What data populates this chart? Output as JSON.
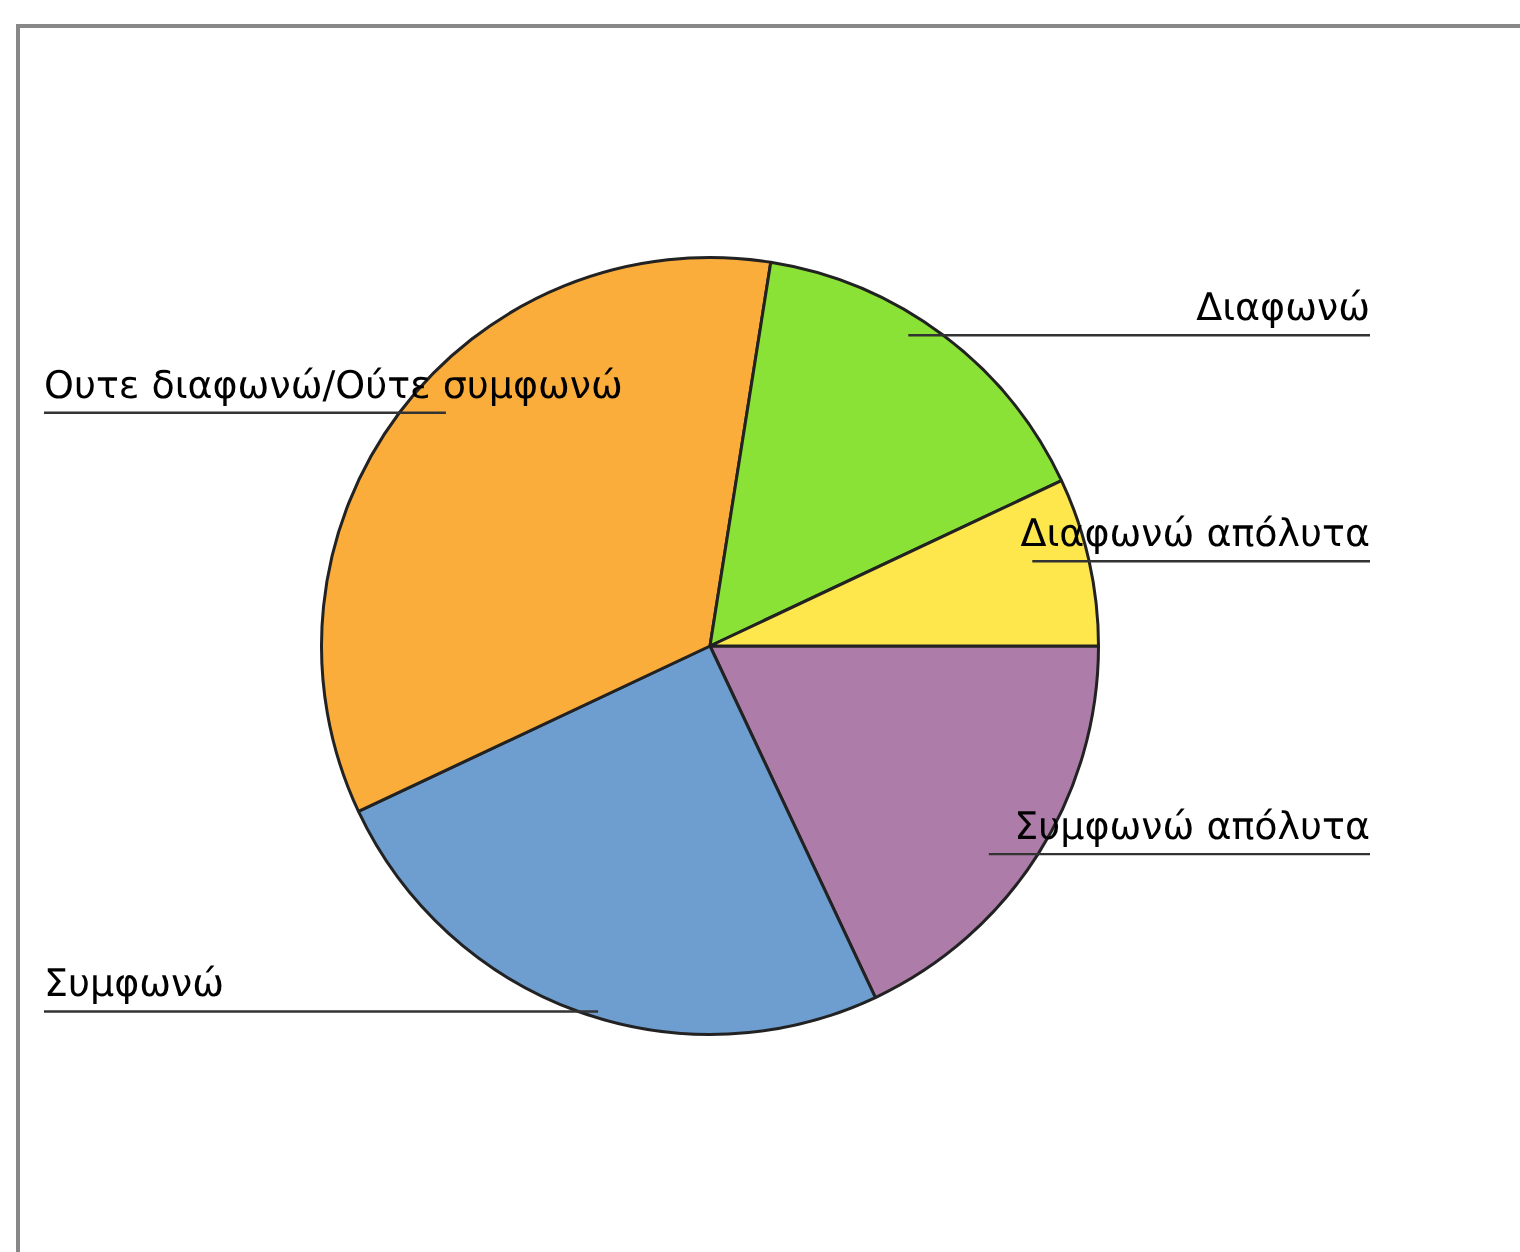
{
  "chart_data": {
    "type": "pie",
    "categories": [
      "Συμφωνώ απόλυτα",
      "Συμφωνώ",
      "Ουτε διαφωνώ/Ούτε συμφωνώ",
      "Διαφωνώ",
      "Διαφωνώ απόλυτα"
    ],
    "values": [
      18,
      25,
      34.5,
      15.5,
      7
    ],
    "colors": [
      "#ad7ca8",
      "#6e9dd0",
      "#fbad3c",
      "#8be236",
      "#fde74c"
    ],
    "legend": false
  }
}
